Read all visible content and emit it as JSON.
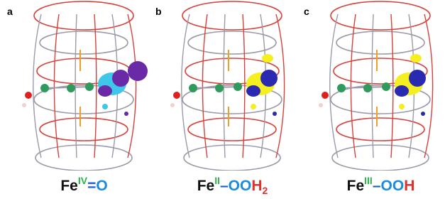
{
  "panels": [
    {
      "label": "a",
      "element": "Fe",
      "oxidation_state": "IV",
      "bond": "=",
      "ligand": "O"
    },
    {
      "label": "b",
      "element": "Fe",
      "oxidation_state": "II",
      "bond": "–",
      "ligand": "OO",
      "hydrogen": "H",
      "subscript": "2"
    },
    {
      "label": "c",
      "element": "Fe",
      "oxidation_state": "III",
      "bond": "–",
      "ligand": "OO",
      "hydrogen": "H"
    }
  ]
}
